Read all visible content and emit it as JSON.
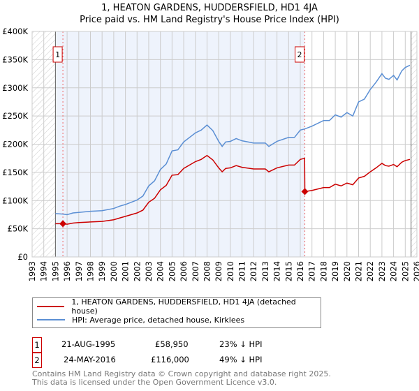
{
  "chart_data": {
    "type": "line",
    "title": "1, HEATON GARDENS, HUDDERSFIELD, HD1 4JA",
    "subtitle": "Price paid vs. HM Land Registry's House Price Index (HPI)",
    "xlim": [
      1993,
      2026
    ],
    "ylim": [
      0,
      400000
    ],
    "x_ticks": [
      "1993",
      "1994",
      "1995",
      "1996",
      "1997",
      "1998",
      "1999",
      "2000",
      "2001",
      "2002",
      "2003",
      "2004",
      "2005",
      "2006",
      "2007",
      "2008",
      "2009",
      "2010",
      "2011",
      "2012",
      "2013",
      "2014",
      "2015",
      "2016",
      "2017",
      "2018",
      "2019",
      "2020",
      "2021",
      "2022",
      "2023",
      "2024",
      "2025",
      "2026"
    ],
    "y_ticks": [
      {
        "v": 0,
        "label": "£0"
      },
      {
        "v": 50000,
        "label": "£50K"
      },
      {
        "v": 100000,
        "label": "£100K"
      },
      {
        "v": 150000,
        "label": "£150K"
      },
      {
        "v": 200000,
        "label": "£200K"
      },
      {
        "v": 250000,
        "label": "£250K"
      },
      {
        "v": 300000,
        "label": "£300K"
      },
      {
        "v": 350000,
        "label": "£350K"
      },
      {
        "v": 400000,
        "label": "£400K"
      }
    ],
    "grid": true,
    "series": [
      {
        "name": "1, HEATON GARDENS, HUDDERSFIELD, HD1 4JA (detached house)",
        "color": "#cc0000",
        "x": [
          1995.0,
          1995.64,
          1996.0,
          1996.5,
          1997,
          1998,
          1999,
          2000,
          2000.5,
          2001,
          2002,
          2002.5,
          2003,
          2003.5,
          2004,
          2004.5,
          2005,
          2005.5,
          2006,
          2007,
          2007.5,
          2008,
          2008.5,
          2009,
          2009.3,
          2009.6,
          2010,
          2010.5,
          2011,
          2012,
          2013,
          2013.3,
          2014,
          2015,
          2015.5,
          2016,
          2016.37,
          2016.39,
          2017,
          2018,
          2018.5,
          2019,
          2019.5,
          2020,
          2020.5,
          2021,
          2021.5,
          2022,
          2022.5,
          2023,
          2023.3,
          2023.6,
          2024,
          2024.3,
          2024.7,
          2025,
          2025.4
        ],
        "y": [
          59000,
          58950,
          58000,
          60000,
          61000,
          62000,
          63000,
          66000,
          69000,
          72000,
          78000,
          83000,
          97000,
          104000,
          119000,
          127000,
          145000,
          146000,
          157000,
          169000,
          173000,
          180000,
          172000,
          158000,
          151000,
          157000,
          158000,
          162000,
          159000,
          156000,
          156000,
          151000,
          158000,
          163000,
          163000,
          173000,
          175000,
          116000,
          118000,
          123000,
          123000,
          129000,
          126000,
          131000,
          128000,
          140000,
          143000,
          151000,
          158000,
          166000,
          162000,
          161000,
          164000,
          160000,
          168000,
          171000,
          173000
        ]
      },
      {
        "name": "HPI: Average price, detached house, Kirklees",
        "color": "#5b8fd4",
        "x": [
          1995.0,
          1995.64,
          1996.0,
          1996.5,
          1997,
          1998,
          1999,
          2000,
          2000.5,
          2001,
          2002,
          2002.5,
          2003,
          2003.5,
          2004,
          2004.5,
          2005,
          2005.5,
          2006,
          2007,
          2007.5,
          2008,
          2008.5,
          2009,
          2009.3,
          2009.6,
          2010,
          2010.5,
          2011,
          2012,
          2013,
          2013.3,
          2014,
          2015,
          2015.5,
          2016,
          2016.38,
          2017,
          2018,
          2018.5,
          2019,
          2019.5,
          2020,
          2020.5,
          2021,
          2021.5,
          2022,
          2022.5,
          2023,
          2023.3,
          2023.6,
          2024,
          2024.3,
          2024.7,
          2025,
          2025.4
        ],
        "y": [
          77000,
          76000,
          75000,
          78000,
          79000,
          81000,
          82000,
          86000,
          90000,
          93000,
          101000,
          108000,
          126000,
          135000,
          155000,
          165000,
          188000,
          190000,
          204000,
          220000,
          225000,
          234000,
          224000,
          205000,
          196000,
          204000,
          205000,
          210000,
          206000,
          202000,
          202000,
          196000,
          205000,
          212000,
          212000,
          225000,
          227000,
          232000,
          242000,
          242000,
          252000,
          248000,
          256000,
          250000,
          275000,
          280000,
          297000,
          310000,
          325000,
          317000,
          315000,
          322000,
          314000,
          330000,
          336000,
          340000
        ]
      }
    ],
    "annotations": [
      {
        "label": "1",
        "x": 1995.64,
        "y": 58950
      },
      {
        "label": "2",
        "x": 2016.39,
        "y": 116000
      }
    ],
    "shaded_range": [
      1995,
      2016.39
    ],
    "hatched_ranges": [
      [
        1993,
        1995
      ],
      [
        2025.5,
        2026
      ]
    ],
    "legend": "below"
  },
  "transactions": [
    {
      "num": "1",
      "date": "21-AUG-1995",
      "price": "£58,950",
      "hpi": "23% ↓ HPI"
    },
    {
      "num": "2",
      "date": "24-MAY-2016",
      "price": "£116,000",
      "hpi": "49% ↓ HPI"
    }
  ],
  "footer": {
    "line1": "Contains HM Land Registry data © Crown copyright and database right 2025.",
    "line2": "This data is licensed under the Open Government Licence v3.0."
  }
}
